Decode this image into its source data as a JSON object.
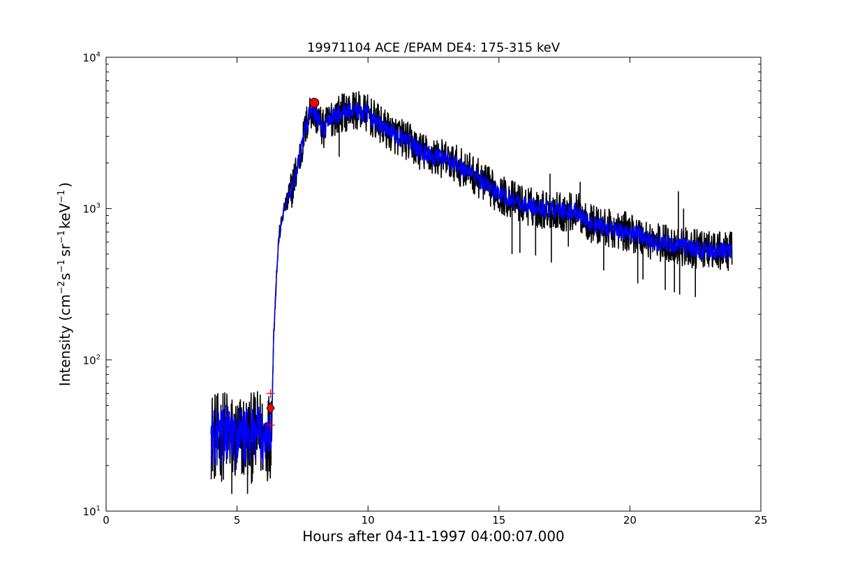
{
  "chart_data": {
    "type": "line",
    "title": "19971104 ACE /EPAM DE4: 175-315 keV",
    "xlabel": "Hours after 04-11-1997 04:00:07.000",
    "ylabel": {
      "main": "Intensity (cm",
      "sup1": "−2",
      "mid1": "s",
      "sup2": "−1",
      "mid2": "sr",
      "sup3": "−1",
      "mid3": "keV",
      "sup4": "−1",
      "end": ")"
    },
    "xlim": [
      0,
      25
    ],
    "ylim": [
      10,
      10000
    ],
    "yscale": "log",
    "x_ticks": [
      "0",
      "5",
      "10",
      "15",
      "20",
      "25"
    ],
    "y_ticks": [
      {
        "base": "10",
        "exp": "1"
      },
      {
        "base": "10",
        "exp": "2"
      },
      {
        "base": "10",
        "exp": "3"
      },
      {
        "base": "10",
        "exp": "4"
      }
    ],
    "grid": false,
    "series": [
      {
        "role": "raw",
        "color": "#000000",
        "x": [
          4.0,
          4.3,
          4.6,
          4.9,
          5.2,
          5.5,
          5.8,
          6.1,
          6.3,
          6.35,
          6.4,
          6.5,
          6.6,
          6.8,
          7.0,
          7.2,
          7.4,
          7.6,
          7.8,
          8.0,
          8.3,
          8.6,
          9.0,
          9.5,
          10.0,
          10.5,
          11.0,
          11.5,
          12.0,
          12.5,
          13.0,
          13.5,
          14.0,
          14.5,
          15.0,
          15.5,
          16.0,
          16.5,
          17.0,
          17.5,
          18.0,
          18.5,
          19.0,
          19.5,
          20.0,
          20.5,
          21.0,
          21.5,
          22.0,
          22.5,
          23.0,
          23.5,
          23.9
        ],
        "y": [
          32,
          30,
          33,
          29,
          31,
          30,
          32,
          31,
          33,
          60,
          150,
          350,
          650,
          1000,
          1200,
          1600,
          2200,
          3300,
          4500,
          4200,
          3300,
          4000,
          4300,
          4500,
          4200,
          3500,
          3100,
          2800,
          2400,
          2200,
          2100,
          1900,
          1700,
          1450,
          1250,
          1150,
          1050,
          1000,
          980,
          950,
          950,
          800,
          750,
          720,
          700,
          650,
          600,
          580,
          560,
          540,
          530,
          520,
          520
        ],
        "noise_base": 0.13,
        "noise_early": 0.3,
        "spikes": [
          {
            "x": 4.8,
            "y": 13
          },
          {
            "x": 5.4,
            "y": 13
          },
          {
            "x": 8.9,
            "y": 2200
          },
          {
            "x": 15.5,
            "y": 500
          },
          {
            "x": 15.8,
            "y": 510
          },
          {
            "x": 16.4,
            "y": 490
          },
          {
            "x": 16.95,
            "y": 1700
          },
          {
            "x": 17.0,
            "y": 440
          },
          {
            "x": 17.65,
            "y": 560
          },
          {
            "x": 18.1,
            "y": 1500
          },
          {
            "x": 19.0,
            "y": 390
          },
          {
            "x": 20.3,
            "y": 320
          },
          {
            "x": 20.5,
            "y": 340
          },
          {
            "x": 21.35,
            "y": 290
          },
          {
            "x": 21.7,
            "y": 280
          },
          {
            "x": 21.9,
            "y": 270
          },
          {
            "x": 22.5,
            "y": 260
          },
          {
            "x": 21.85,
            "y": 1300
          },
          {
            "x": 22.05,
            "y": 1000
          }
        ]
      },
      {
        "role": "smoothed",
        "color": "#0000ff",
        "x": [
          4.0,
          4.3,
          4.6,
          4.9,
          5.2,
          5.5,
          5.8,
          6.1,
          6.3,
          6.35,
          6.4,
          6.5,
          6.6,
          6.8,
          7.0,
          7.2,
          7.4,
          7.6,
          7.8,
          8.0,
          8.3,
          8.6,
          9.0,
          9.5,
          10.0,
          10.5,
          11.0,
          11.5,
          12.0,
          12.5,
          13.0,
          13.5,
          14.0,
          14.5,
          15.0,
          15.5,
          16.0,
          16.5,
          17.0,
          17.5,
          18.0,
          18.5,
          19.0,
          19.5,
          20.0,
          20.5,
          21.0,
          21.5,
          22.0,
          22.5,
          23.0,
          23.5,
          23.9
        ],
        "y": [
          32,
          30,
          33,
          29,
          31,
          30,
          32,
          31,
          33,
          60,
          150,
          350,
          650,
          1000,
          1200,
          1600,
          2200,
          3300,
          4500,
          4200,
          3300,
          4000,
          4300,
          4500,
          4200,
          3500,
          3100,
          2800,
          2400,
          2200,
          2100,
          1900,
          1700,
          1450,
          1250,
          1150,
          1050,
          1000,
          980,
          950,
          950,
          800,
          750,
          720,
          700,
          650,
          600,
          580,
          560,
          540,
          530,
          520,
          520
        ],
        "noise_base": 0.06,
        "noise_early": 0.2
      }
    ],
    "markers": [
      {
        "kind": "circle",
        "x": 7.95,
        "y": 5000,
        "color": "#ff0000"
      },
      {
        "kind": "diamond",
        "x": 6.28,
        "y": 48,
        "color": "#ff0000"
      },
      {
        "kind": "plus",
        "x": 6.28,
        "y": 60,
        "color": "#ff0000"
      },
      {
        "kind": "plus",
        "x": 6.28,
        "y": 37,
        "color": "#ff0000"
      }
    ]
  }
}
